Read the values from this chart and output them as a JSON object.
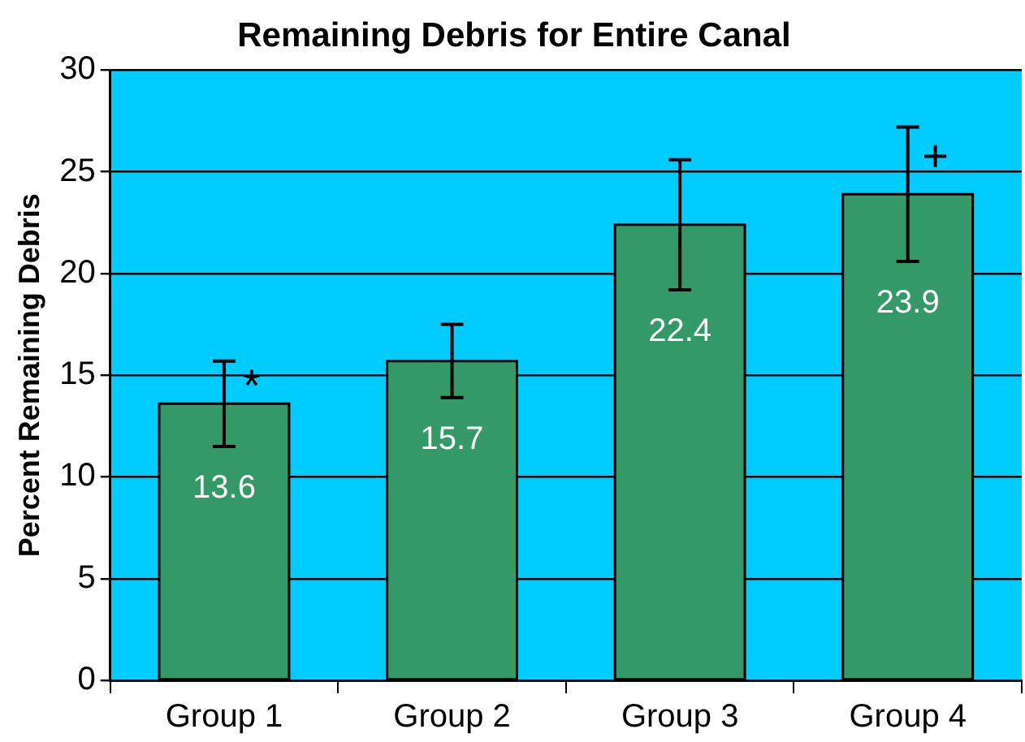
{
  "chart_data": {
    "type": "bar",
    "title": "Remaining Debris for Entire Canal",
    "ylabel": "Percent Remaining Debris",
    "categories": [
      "Group 1",
      "Group 2",
      "Group 3",
      "Group 4"
    ],
    "values": [
      13.6,
      15.7,
      22.4,
      23.9
    ],
    "color": "#339966",
    "errors": [
      2.1,
      1.8,
      3.2,
      3.3
    ],
    "data_labels": true,
    "annotations": [
      {
        "text": "*",
        "x": "Group 1",
        "y": 14.6
      },
      {
        "text": "+",
        "x": "Group 4",
        "y": 25.9
      }
    ],
    "ylim": [
      0,
      30
    ],
    "yticks": [
      0,
      5,
      10,
      15,
      20,
      25,
      30
    ],
    "grid": "y",
    "legend": false
  }
}
